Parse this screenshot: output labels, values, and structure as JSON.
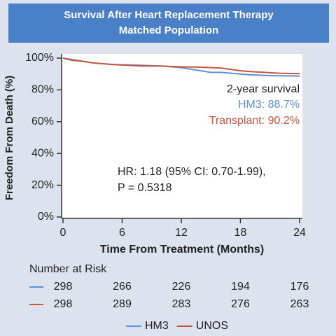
{
  "chart_data": {
    "type": "line",
    "title": [
      "Survival After Heart Replacement Therapy",
      "Matched Population"
    ],
    "x_label": "Time From Treatment (Months)",
    "y_label": "Freedom From Death (%)",
    "x": [
      0,
      1,
      2,
      3,
      5,
      8,
      10,
      12,
      14,
      15,
      16,
      18,
      19,
      21,
      22,
      24
    ],
    "series": [
      {
        "name": "HM3",
        "color": "#5b8fd6",
        "values": [
          100,
          99,
          98,
          97,
          96,
          95.5,
          95,
          94,
          92,
          91,
          91,
          90,
          89.5,
          89,
          88.9,
          88.7
        ]
      },
      {
        "name": "UNOS",
        "color": "#c8553d",
        "values": [
          100,
          98.5,
          98,
          97,
          96,
          95,
          95,
          94.5,
          94.3,
          94,
          93.8,
          92,
          91.5,
          90.8,
          90.5,
          90.2
        ]
      }
    ],
    "xlim": [
      0,
      24
    ],
    "xticks": [
      0,
      6,
      12,
      18,
      24
    ],
    "ylim": [
      0,
      100
    ],
    "yticks": [
      {
        "value": 0,
        "label": "0%"
      },
      {
        "value": 20,
        "label": "20%"
      },
      {
        "value": 40,
        "label": "40%"
      },
      {
        "value": 60,
        "label": "60%"
      },
      {
        "value": 80,
        "label": "80%"
      },
      {
        "value": 100,
        "label": "100%"
      }
    ],
    "annotations": [
      {
        "text": "2-year survival",
        "color": "#222222"
      },
      {
        "text": "HM3: 88.7%",
        "color": "#5b8fd6"
      },
      {
        "text": "Transplant: 90.2%",
        "color": "#c8553d"
      },
      {
        "text": "HR: 1.18 (95% CI: 0.70-1.99),",
        "color": "#222222"
      },
      {
        "text": "P = 0.5318",
        "color": "#222222"
      }
    ],
    "number_at_risk": {
      "title": "Number at Risk",
      "rows": [
        {
          "color": "#5b8fd6",
          "values": [
            298,
            266,
            226,
            194,
            176
          ]
        },
        {
          "color": "#c8553d",
          "values": [
            298,
            289,
            283,
            276,
            263
          ]
        }
      ]
    }
  }
}
